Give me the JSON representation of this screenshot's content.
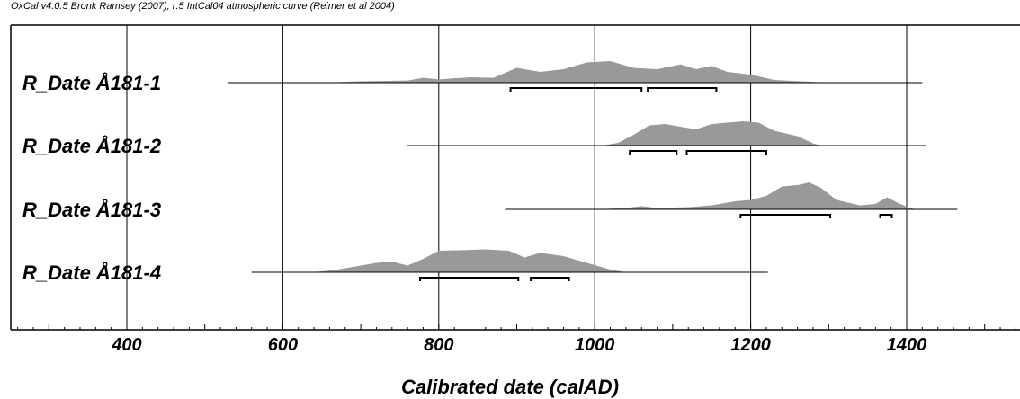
{
  "header": "OxCal v4.0.5 Bronk Ramsey (2007); r:5 IntCal04 atmospheric curve (Reimer et al 2004)",
  "chart_data": {
    "type": "area",
    "xlabel": "Calibrated date (calAD)",
    "xlim": [
      250,
      1550
    ],
    "xticks": [
      400,
      600,
      800,
      1000,
      1200,
      1400
    ],
    "grid": true,
    "series": [
      {
        "name": "R_Date Å181-1",
        "range": [
          530,
          1420
        ],
        "density": [
          [
            560,
            0
          ],
          [
            650,
            0
          ],
          [
            700,
            0.05
          ],
          [
            760,
            0.08
          ],
          [
            780,
            0.18
          ],
          [
            800,
            0.12
          ],
          [
            840,
            0.2
          ],
          [
            870,
            0.18
          ],
          [
            900,
            0.55
          ],
          [
            930,
            0.4
          ],
          [
            960,
            0.5
          ],
          [
            990,
            0.75
          ],
          [
            1020,
            0.8
          ],
          [
            1050,
            0.55
          ],
          [
            1080,
            0.5
          ],
          [
            1110,
            0.68
          ],
          [
            1130,
            0.5
          ],
          [
            1150,
            0.62
          ],
          [
            1170,
            0.4
          ],
          [
            1200,
            0.3
          ],
          [
            1230,
            0.1
          ],
          [
            1270,
            0.04
          ],
          [
            1300,
            0
          ]
        ],
        "hpd": [
          [
            892,
            1060
          ],
          [
            1068,
            1156
          ]
        ]
      },
      {
        "name": "R_Date Å181-2",
        "range": [
          760,
          1425
        ],
        "density": [
          [
            1010,
            0
          ],
          [
            1030,
            0.1
          ],
          [
            1050,
            0.4
          ],
          [
            1070,
            0.75
          ],
          [
            1090,
            0.8
          ],
          [
            1110,
            0.7
          ],
          [
            1130,
            0.6
          ],
          [
            1150,
            0.8
          ],
          [
            1170,
            0.85
          ],
          [
            1190,
            0.9
          ],
          [
            1210,
            0.85
          ],
          [
            1230,
            0.55
          ],
          [
            1260,
            0.35
          ],
          [
            1280,
            0.08
          ],
          [
            1290,
            0
          ]
        ],
        "hpd": [
          [
            1045,
            1105
          ],
          [
            1118,
            1220
          ]
        ]
      },
      {
        "name": "R_Date Å181-3",
        "range": [
          885,
          1465
        ],
        "density": [
          [
            1000,
            0
          ],
          [
            1040,
            0.05
          ],
          [
            1060,
            0.12
          ],
          [
            1080,
            0.05
          ],
          [
            1120,
            0.08
          ],
          [
            1150,
            0.15
          ],
          [
            1180,
            0.3
          ],
          [
            1200,
            0.35
          ],
          [
            1220,
            0.5
          ],
          [
            1240,
            0.85
          ],
          [
            1260,
            0.9
          ],
          [
            1275,
            1.0
          ],
          [
            1290,
            0.8
          ],
          [
            1310,
            0.35
          ],
          [
            1340,
            0.15
          ],
          [
            1360,
            0.2
          ],
          [
            1375,
            0.45
          ],
          [
            1390,
            0.22
          ],
          [
            1410,
            0
          ]
        ],
        "hpd": [
          [
            1187,
            1302
          ],
          [
            1366,
            1381
          ]
        ]
      },
      {
        "name": "R_Date Å181-4",
        "range": [
          560,
          1222
        ],
        "density": [
          [
            640,
            0
          ],
          [
            670,
            0.1
          ],
          [
            700,
            0.25
          ],
          [
            720,
            0.35
          ],
          [
            740,
            0.4
          ],
          [
            760,
            0.25
          ],
          [
            780,
            0.5
          ],
          [
            800,
            0.8
          ],
          [
            830,
            0.82
          ],
          [
            860,
            0.85
          ],
          [
            890,
            0.8
          ],
          [
            910,
            0.55
          ],
          [
            930,
            0.72
          ],
          [
            960,
            0.6
          ],
          [
            990,
            0.35
          ],
          [
            1020,
            0.1
          ],
          [
            1040,
            0
          ]
        ],
        "hpd": [
          [
            776,
            902
          ],
          [
            918,
            967
          ]
        ]
      }
    ]
  }
}
